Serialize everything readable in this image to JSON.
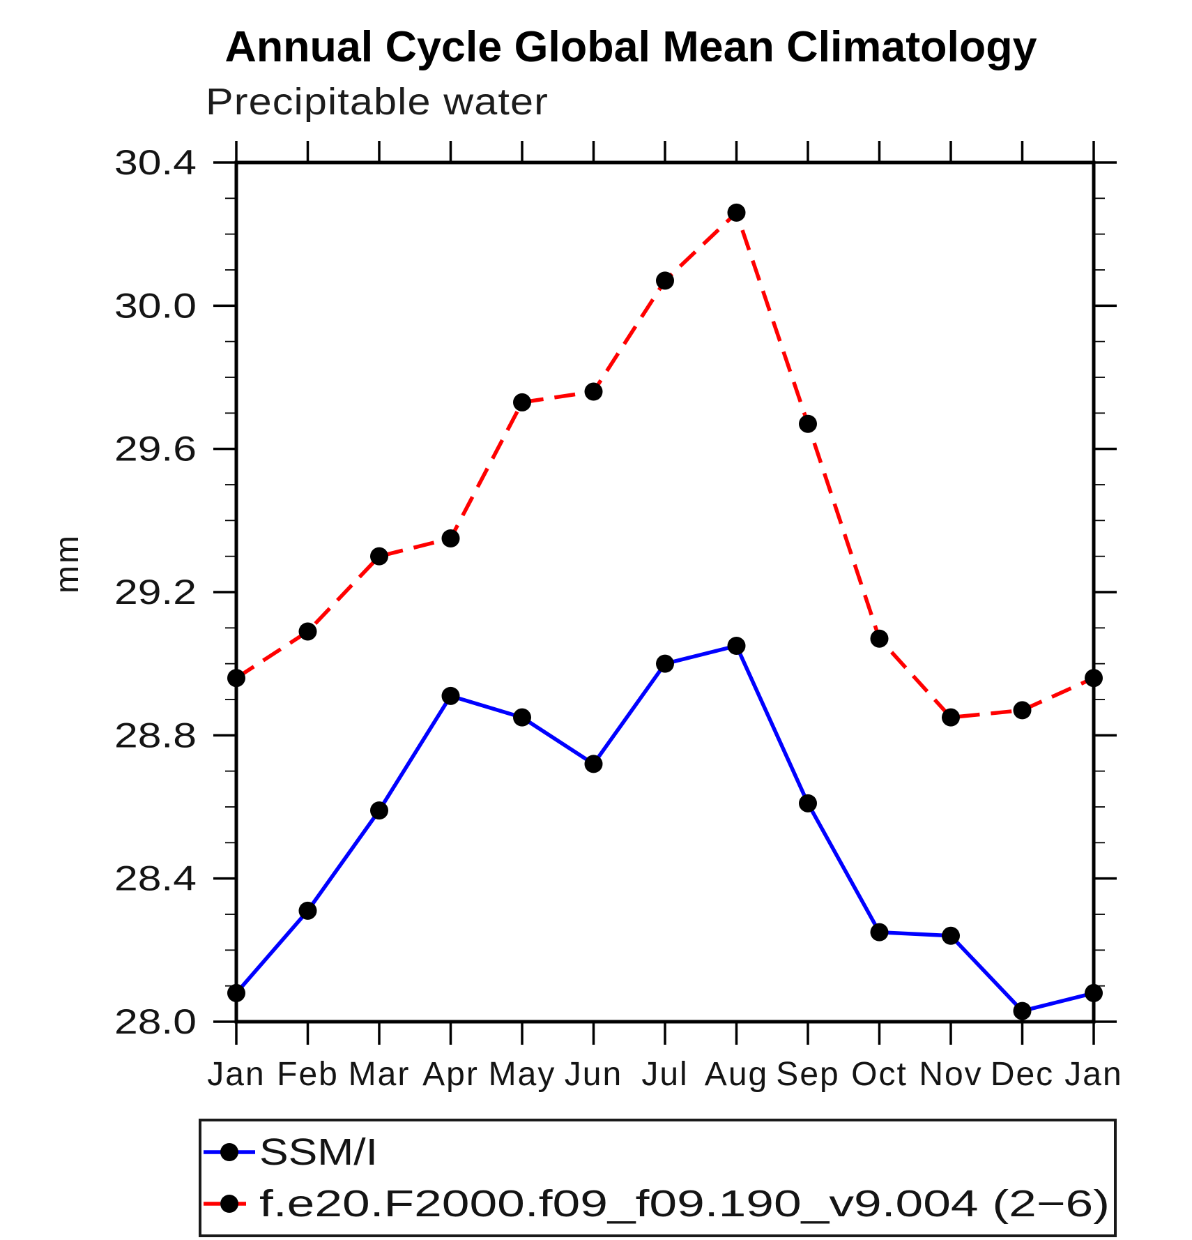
{
  "figure": {
    "background": "#ffffff",
    "axis_color": "#000000"
  },
  "chart_data": {
    "type": "line",
    "title": "Annual Cycle Global Mean Climatology",
    "subtitle": "Precipitable water",
    "ylabel": "mm",
    "x_categories": [
      "Jan",
      "Feb",
      "Mar",
      "Apr",
      "May",
      "Jun",
      "Jul",
      "Aug",
      "Sep",
      "Oct",
      "Nov",
      "Dec",
      "Jan"
    ],
    "ylim": [
      28.0,
      30.4
    ],
    "y_major_ticks": [
      28.0,
      28.4,
      28.8,
      29.2,
      29.6,
      30.0,
      30.4
    ],
    "y_minor_step": 0.1,
    "grid": false,
    "legend_position": "bottom-left",
    "series": [
      {
        "name": "SSM/I",
        "color": "#0000ff",
        "line_style": "solid",
        "marker": "filled-circle",
        "marker_color": "#000000",
        "values": [
          28.08,
          28.31,
          28.59,
          28.91,
          28.85,
          28.72,
          29.0,
          29.05,
          28.61,
          28.25,
          28.24,
          28.03,
          28.08
        ]
      },
      {
        "name": "f.e20.F2000.f09_f09.190_v9.004 (2−6)",
        "color": "#ff0000",
        "line_style": "dashed",
        "marker": "filled-circle",
        "marker_color": "#000000",
        "values": [
          28.96,
          29.09,
          29.3,
          29.35,
          29.73,
          29.76,
          30.07,
          30.26,
          29.67,
          29.07,
          28.85,
          28.87,
          28.96
        ]
      }
    ]
  }
}
